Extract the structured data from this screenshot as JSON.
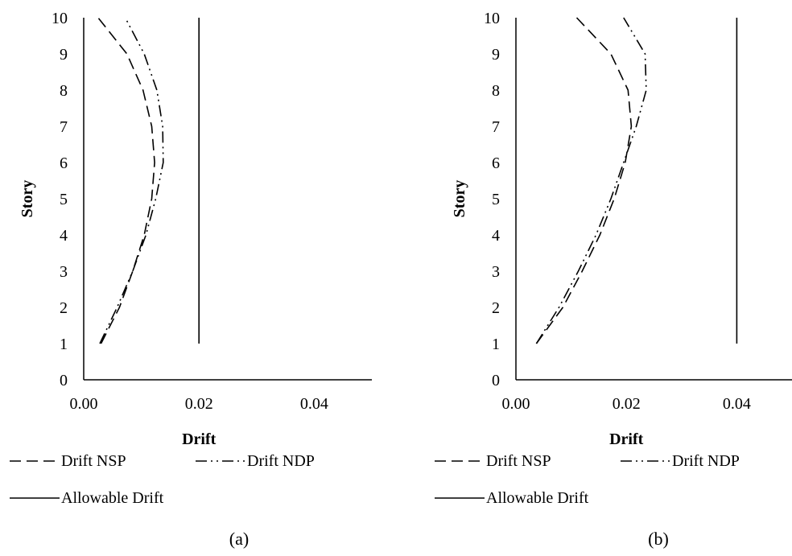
{
  "chart_data": [
    {
      "type": "line",
      "orientation": "vertical",
      "xlabel": "Drift",
      "ylabel": "Story",
      "xlim": [
        0,
        0.05
      ],
      "ylim": [
        0,
        10
      ],
      "xticks": [
        "0.00",
        "0.02",
        "0.04"
      ],
      "yticks": [
        "0",
        "1",
        "2",
        "3",
        "4",
        "5",
        "6",
        "7",
        "8",
        "9",
        "10"
      ],
      "grid": false,
      "legend": "bottom",
      "panel_label": "(a)",
      "y": [
        1,
        2,
        3,
        4,
        5,
        6,
        7,
        8,
        9,
        10
      ],
      "series": [
        {
          "name": "Drift NSP",
          "dash": "dashed",
          "values": [
            0.003,
            0.0062,
            0.0085,
            0.0105,
            0.0118,
            0.0123,
            0.0118,
            0.0103,
            0.0075,
            0.0025
          ]
        },
        {
          "name": "Drift NDP",
          "dash": "dash-dot-dot",
          "values": [
            0.0028,
            0.0058,
            0.0085,
            0.0108,
            0.0125,
            0.0138,
            0.0137,
            0.0127,
            0.0105,
            0.0072
          ]
        },
        {
          "name": "Allowable Drift",
          "dash": "solid",
          "values": [
            0.02,
            0.02,
            0.02,
            0.02,
            0.02,
            0.02,
            0.02,
            0.02,
            0.02,
            0.02
          ]
        }
      ]
    },
    {
      "type": "line",
      "orientation": "vertical",
      "xlabel": "Drift",
      "ylabel": "Story",
      "xlim": [
        0,
        0.05
      ],
      "ylim": [
        0,
        10
      ],
      "xticks": [
        "0.00",
        "0.02",
        "0.04"
      ],
      "yticks": [
        "0",
        "1",
        "2",
        "3",
        "4",
        "5",
        "6",
        "7",
        "8",
        "9",
        "10"
      ],
      "grid": false,
      "legend": "bottom",
      "panel_label": "(b)",
      "y": [
        1,
        2,
        3,
        4,
        5,
        6,
        7,
        8,
        9,
        10
      ],
      "series": [
        {
          "name": "Drift NSP",
          "dash": "dashed",
          "values": [
            0.0037,
            0.0085,
            0.012,
            0.0152,
            0.0178,
            0.0198,
            0.0209,
            0.0203,
            0.0172,
            0.011
          ]
        },
        {
          "name": "Drift NDP",
          "dash": "dash-dot-dot",
          "values": [
            0.0037,
            0.0078,
            0.0113,
            0.0145,
            0.0172,
            0.0195,
            0.0218,
            0.0236,
            0.0234,
            0.0195
          ]
        },
        {
          "name": "Allowable Drift",
          "dash": "solid",
          "values": [
            0.04,
            0.04,
            0.04,
            0.04,
            0.04,
            0.04,
            0.04,
            0.04,
            0.04,
            0.04
          ]
        }
      ]
    }
  ]
}
